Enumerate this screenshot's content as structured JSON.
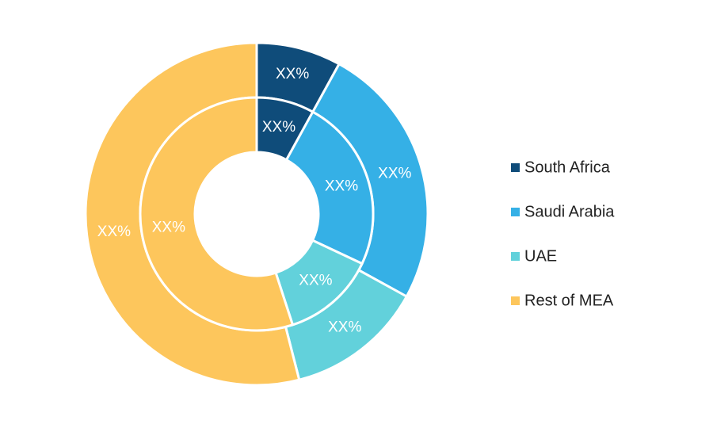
{
  "chart_data": {
    "type": "donut",
    "categories": [
      "South Africa",
      "Saudi Arabia",
      "UAE",
      "Rest of MEA"
    ],
    "colors": [
      "#0f4c7a",
      "#35b0e6",
      "#62d1db",
      "#fdc65c"
    ],
    "series": [
      {
        "values": [
          8,
          25,
          13,
          54
        ],
        "value_labels": [
          "XX%",
          "XX%",
          "XX%",
          "XX%"
        ]
      },
      {
        "values": [
          8,
          24,
          13,
          55
        ],
        "value_labels": [
          "XX%",
          "XX%",
          "XX%",
          "XX%"
        ]
      }
    ],
    "legend": "right"
  }
}
